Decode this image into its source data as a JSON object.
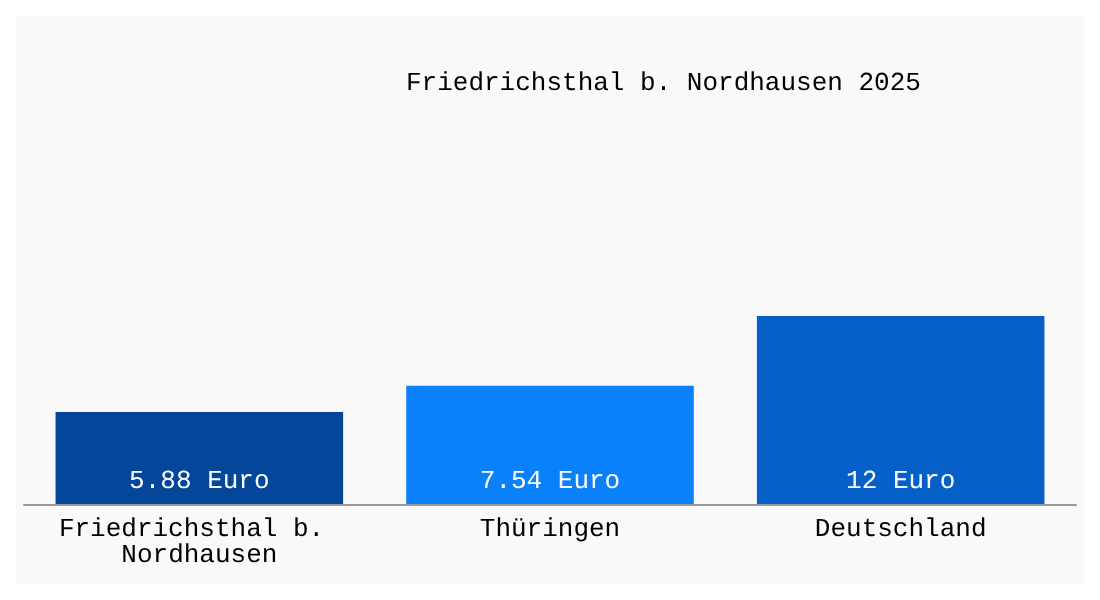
{
  "chart_data": {
    "type": "bar",
    "title": "Friedrichsthal b. Nordhausen 2025",
    "categories": [
      "Friedrichsthal b. Nordhausen",
      "Thüringen",
      "Deutschland"
    ],
    "values": [
      5.88,
      7.54,
      12
    ],
    "colors": [
      "#04479a",
      "#0a80fa",
      "#0660c8"
    ],
    "value_labels": [
      "5.88 Euro",
      "7.54 Euro",
      "12 Euro"
    ]
  }
}
